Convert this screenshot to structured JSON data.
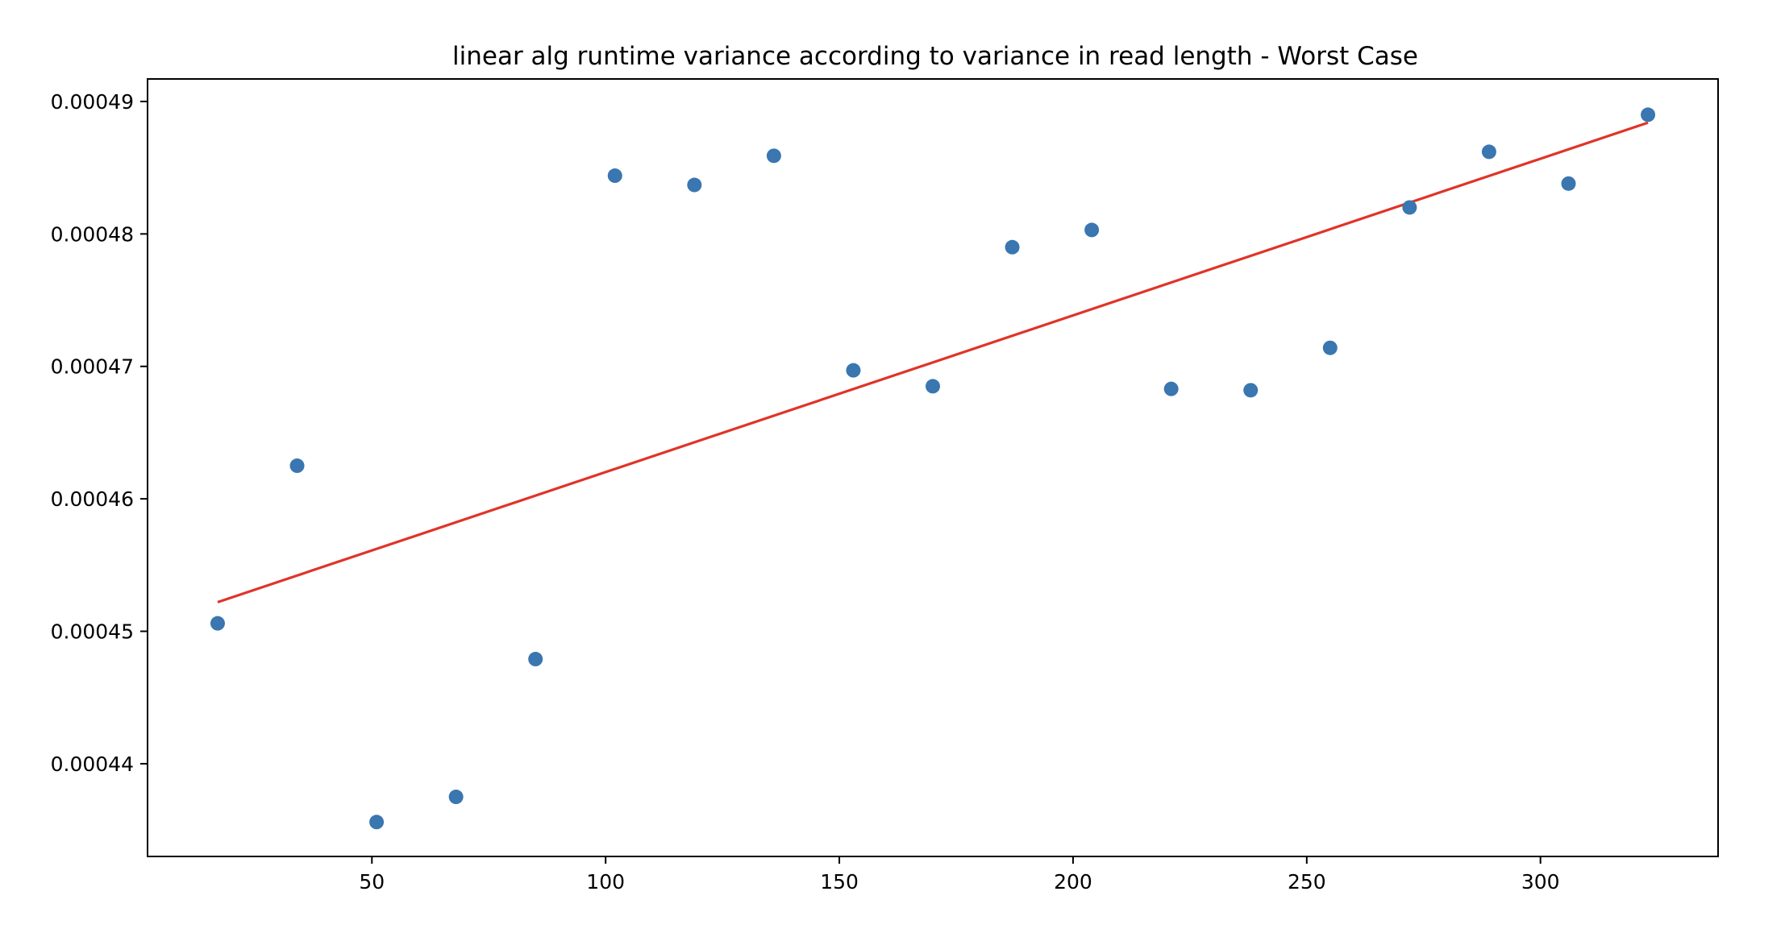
{
  "chart_data": {
    "type": "scatter",
    "title": "linear alg runtime variance according to variance in read length - Worst Case",
    "xlabel": "",
    "ylabel": "",
    "xlim": [
      2,
      338
    ],
    "ylim": [
      0.000433,
      0.0004917
    ],
    "xticks": [
      50,
      100,
      150,
      200,
      250,
      300
    ],
    "xtick_labels": [
      "50",
      "100",
      "150",
      "200",
      "250",
      "300"
    ],
    "yticks": [
      0.00044,
      0.00045,
      0.00046,
      0.00047,
      0.00048,
      0.00049
    ],
    "ytick_labels": [
      "0.00044",
      "0.00045",
      "0.00046",
      "0.00047",
      "0.00048",
      "0.00049"
    ],
    "grid": false,
    "series": [
      {
        "kind": "scatter",
        "color": "#3a76b0",
        "points": [
          [
            17,
            0.0004506
          ],
          [
            34,
            0.0004625
          ],
          [
            51,
            0.0004356
          ],
          [
            68,
            0.0004375
          ],
          [
            85,
            0.0004479
          ],
          [
            102,
            0.0004844
          ],
          [
            119,
            0.0004837
          ],
          [
            136,
            0.0004859
          ],
          [
            153,
            0.0004697
          ],
          [
            170,
            0.0004685
          ],
          [
            187,
            0.000479
          ],
          [
            204,
            0.0004803
          ],
          [
            221,
            0.0004683
          ],
          [
            238,
            0.0004682
          ],
          [
            255,
            0.0004714
          ],
          [
            272,
            0.000482
          ],
          [
            289,
            0.0004862
          ],
          [
            306,
            0.0004838
          ],
          [
            323,
            0.000489
          ]
        ]
      },
      {
        "kind": "line",
        "color": "#e03428",
        "points": [
          [
            17,
            0.0004522
          ],
          [
            323,
            0.0004884
          ]
        ]
      }
    ]
  }
}
